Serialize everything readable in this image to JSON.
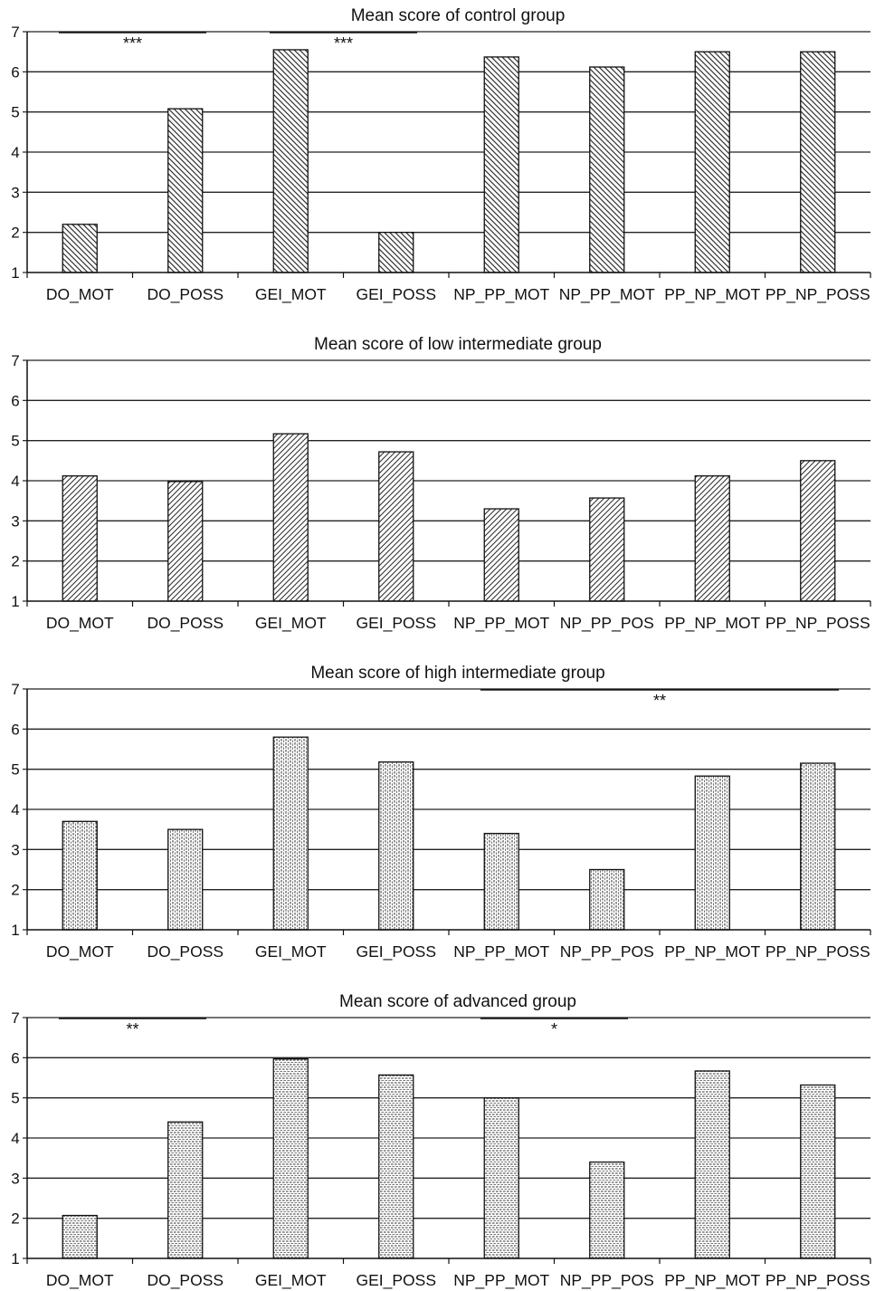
{
  "chart_data": [
    {
      "type": "bar",
      "title": "Mean score of control group",
      "categories": [
        "DO_MOT",
        "DO_POSS",
        "GEI_MOT",
        "GEI_POSS",
        "NP_PP_MOT",
        "NP_PP_MOT",
        "PP_NP_MOT",
        "PP_NP_POSS"
      ],
      "values": [
        2.2,
        5.08,
        6.55,
        2.0,
        6.37,
        6.12,
        6.5,
        6.5
      ],
      "ylim": [
        1,
        7
      ],
      "yticks": [
        1,
        2,
        3,
        4,
        5,
        6,
        7
      ],
      "grid": true,
      "pattern": "diag-back",
      "annotations": [
        {
          "text": "***",
          "from": 0,
          "to": 1
        },
        {
          "text": "***",
          "from": 2,
          "to": 3
        }
      ]
    },
    {
      "type": "bar",
      "title": "Mean score of low intermediate group",
      "categories": [
        "DO_MOT",
        "DO_POSS",
        "GEI_MOT",
        "GEI_POSS",
        "NP_PP_MOT",
        "NP_PP_POS",
        "PP_NP_MOT",
        "PP_NP_POSS"
      ],
      "values": [
        4.12,
        3.98,
        5.17,
        4.72,
        3.3,
        3.57,
        4.12,
        4.5
      ],
      "ylim": [
        1,
        7
      ],
      "yticks": [
        1,
        2,
        3,
        4,
        5,
        6,
        7
      ],
      "grid": true,
      "pattern": "diag-fwd",
      "annotations": []
    },
    {
      "type": "bar",
      "title": "Mean score of high intermediate group",
      "categories": [
        "DO_MOT",
        "DO_POSS",
        "GEI_MOT",
        "GEI_POSS",
        "NP_PP_MOT",
        "NP_PP_POS",
        "PP_NP_MOT",
        "PP_NP_POSS"
      ],
      "values": [
        3.7,
        3.5,
        5.8,
        5.18,
        3.4,
        2.5,
        4.83,
        5.15
      ],
      "ylim": [
        1,
        7
      ],
      "yticks": [
        1,
        2,
        3,
        4,
        5,
        6,
        7
      ],
      "grid": true,
      "pattern": "vertical",
      "annotations": [
        {
          "text": "**",
          "from": 4,
          "to": 7
        }
      ]
    },
    {
      "type": "bar",
      "title": "Mean score of advanced group",
      "categories": [
        "DO_MOT",
        "DO_POSS",
        "GEI_MOT",
        "GEI_POSS",
        "NP_PP_MOT",
        "NP_PP_POS",
        "PP_NP_MOT",
        "PP_NP_POSS"
      ],
      "values": [
        2.07,
        4.4,
        5.97,
        5.57,
        5.0,
        3.4,
        5.67,
        5.32
      ],
      "ylim": [
        1,
        7
      ],
      "yticks": [
        1,
        2,
        3,
        4,
        5,
        6,
        7
      ],
      "grid": true,
      "pattern": "horizontal",
      "annotations": [
        {
          "text": "**",
          "from": 0,
          "to": 1
        },
        {
          "text": "*",
          "from": 4,
          "to": 5
        }
      ]
    }
  ]
}
